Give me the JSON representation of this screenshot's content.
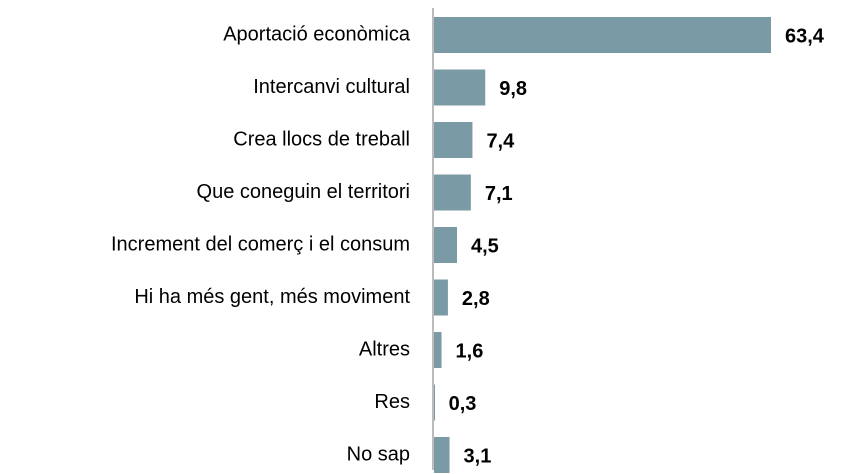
{
  "chart_data": {
    "type": "bar",
    "orientation": "horizontal",
    "categories": [
      "Aportació econòmica",
      "Intercanvi cultural",
      "Crea llocs de treball",
      "Que coneguin el territori",
      "Increment del comerç i el consum",
      "Hi ha més gent, més moviment",
      "Altres",
      "Res",
      "No sap"
    ],
    "values": [
      63.4,
      9.8,
      7.4,
      7.1,
      4.5,
      2.8,
      1.6,
      0.3,
      3.1
    ],
    "value_labels": [
      "63,4",
      "9,8",
      "7,4",
      "7,1",
      "4,5",
      "2,8",
      "1,6",
      "0,3",
      "3,1"
    ],
    "color": "#7a9ba6"
  }
}
